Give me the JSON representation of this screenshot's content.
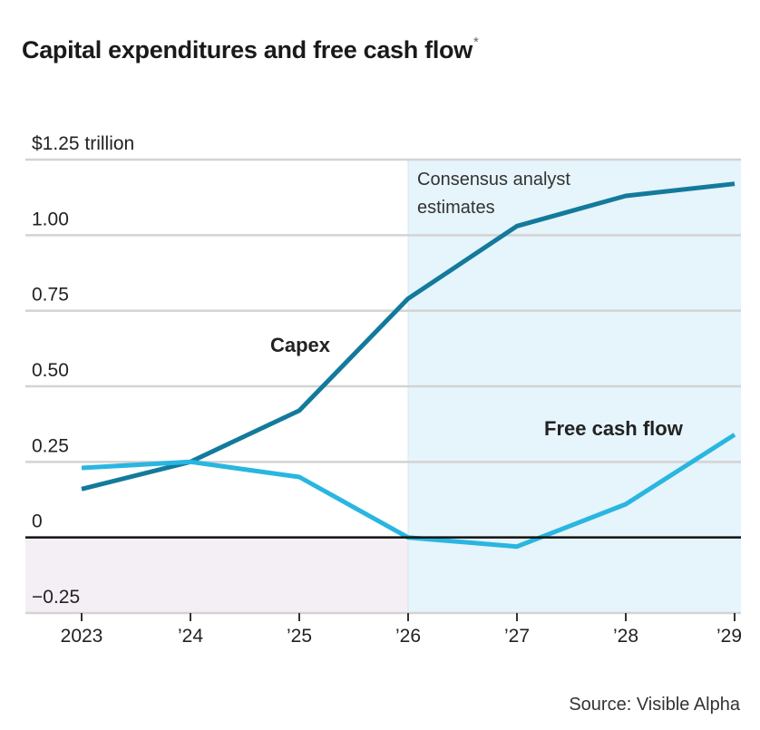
{
  "title": "Capital expenditures and free cash flow",
  "title_mark": "*",
  "source": "Source: Visible Alpha",
  "chart_data": {
    "type": "line",
    "title": "Capital expenditures and free cash flow*",
    "x": [
      2023,
      2024,
      2025,
      2026,
      2027,
      2028,
      2029
    ],
    "x_tick_labels": [
      "2023",
      "’24",
      "’25",
      "’26",
      "’27",
      "’28",
      "’29"
    ],
    "ylim": [
      -0.25,
      1.25
    ],
    "y_ticks": [
      -0.25,
      0,
      0.25,
      0.5,
      0.75,
      1.0,
      1.25
    ],
    "y_tick_labels": [
      "−0.25",
      "0",
      "0.25",
      "0.50",
      "0.75",
      "1.00",
      "$1.25 trillion"
    ],
    "series": [
      {
        "name": "Capex",
        "color": "#137a9c",
        "values": [
          0.16,
          0.25,
          0.42,
          0.79,
          1.03,
          1.13,
          1.17
        ]
      },
      {
        "name": "Free cash flow",
        "color": "#29b6e0",
        "values": [
          0.23,
          0.25,
          0.2,
          0.0,
          -0.03,
          0.11,
          0.34
        ]
      }
    ],
    "shaded_region": {
      "x_start": 2026,
      "x_end": 2029,
      "label": "Consensus analyst estimates",
      "label_lines": [
        "Consensus analyst",
        "estimates"
      ],
      "color": "#e6f4fb"
    },
    "negative_region_color": "#f4eff4",
    "grid": true,
    "legend": "none (direct labels)"
  }
}
